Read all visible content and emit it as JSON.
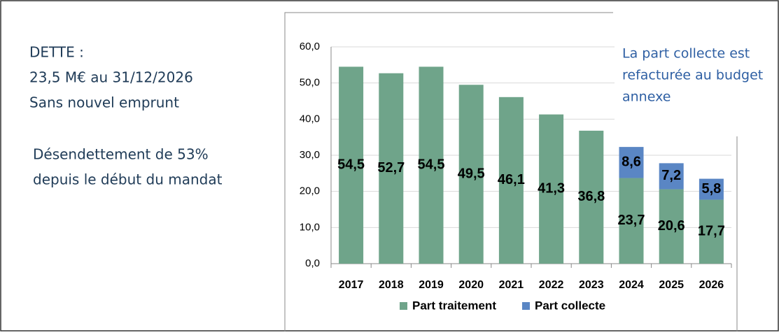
{
  "slide_text": [
    "DETTE :",
    "23,5 M€ au 31/12/2026",
    "Sans nouvel emprunt",
    "Désendettement de 53%",
    "depuis le début du mandat"
  ],
  "chart_data": {
    "type": "bar",
    "stacked": true,
    "annotations": [
      "La part collecte est",
      "refacturée au budget",
      "annexe"
    ],
    "categories": [
      "2017",
      "2018",
      "2019",
      "2020",
      "2021",
      "2022",
      "2023",
      "2024",
      "2025",
      "2026"
    ],
    "series": [
      {
        "name": "Part traitement",
        "color": "#6fa48a",
        "values": [
          54.5,
          52.7,
          54.5,
          49.5,
          46.1,
          41.3,
          36.8,
          23.7,
          20.6,
          17.7
        ],
        "value_labels": [
          "54,5",
          "52,7",
          "54,5",
          "49,5",
          "46,1",
          "41,3",
          "36,8",
          "23,7",
          "20,6",
          "17,7"
        ]
      },
      {
        "name": "Part collecte",
        "color": "#5a86c4",
        "values": [
          null,
          null,
          null,
          null,
          null,
          null,
          null,
          8.6,
          7.2,
          5.8
        ],
        "value_labels": [
          null,
          null,
          null,
          null,
          null,
          null,
          null,
          "8,6",
          "7,2",
          "5,8"
        ]
      }
    ],
    "ylim": [
      0,
      60
    ],
    "yticks": [
      {
        "value": 0,
        "label": "0,0"
      },
      {
        "value": 10,
        "label": "10,0"
      },
      {
        "value": 20,
        "label": "20,0"
      },
      {
        "value": 30,
        "label": "30,0"
      },
      {
        "value": 40,
        "label": "40,0"
      },
      {
        "value": 50,
        "label": "50,0"
      },
      {
        "value": 60,
        "label": "60,0"
      }
    ],
    "grid": true,
    "legend": "bottom"
  }
}
